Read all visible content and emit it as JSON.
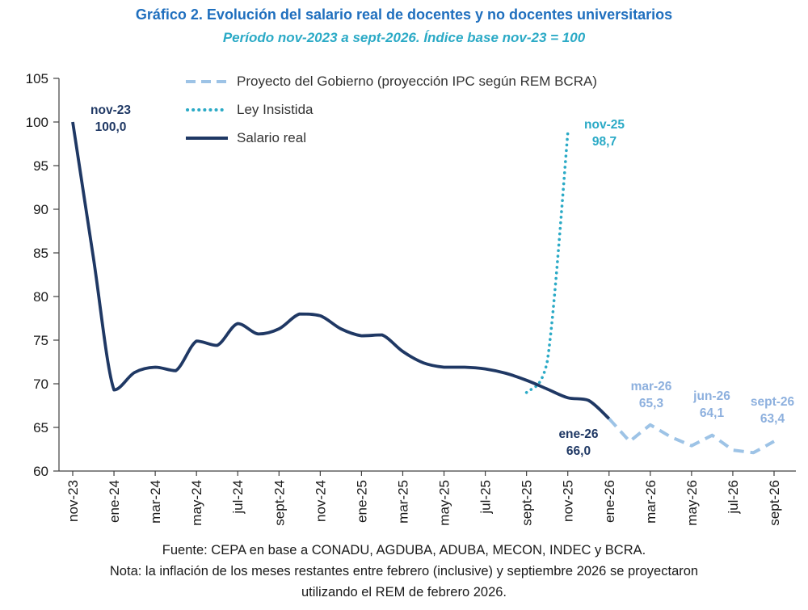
{
  "header": {
    "title": "Gráfico 2. Evolución del salario real de docentes y no docentes universitarios",
    "subtitle": "Período nov-2023 a sept-2026. Índice base nov-23 = 100"
  },
  "colors": {
    "title_blue": "#1F6FBE",
    "subtitle_teal": "#2BAAC6",
    "navy": "#1F3864",
    "teal": "#2BAAC6",
    "light_blue_line": "#9DC3E6",
    "light_blue_text": "#8DB0DE",
    "axis": "#404040",
    "axis_text": "#1a1a1a"
  },
  "legend": [
    {
      "label": "Proyecto del Gobierno (proyección IPC según REM BCRA)",
      "style": "dashed",
      "color": "#9DC3E6"
    },
    {
      "label": "Ley Insistida",
      "style": "dotted",
      "color": "#2BAAC6"
    },
    {
      "label": "Salario real",
      "style": "solid",
      "color": "#1F3864"
    }
  ],
  "annotations": [
    {
      "label": "nov-23",
      "value": "100,0",
      "color": "#1F3864"
    },
    {
      "label": "nov-25",
      "value": "98,7",
      "color": "#2BAAC6"
    },
    {
      "label": "ene-26",
      "value": "66,0",
      "color": "#1F3864"
    },
    {
      "label": "mar-26",
      "value": "65,3",
      "color": "#8DB0DE"
    },
    {
      "label": "jun-26",
      "value": "64,1",
      "color": "#8DB0DE"
    },
    {
      "label": "sept-26",
      "value": "63,4",
      "color": "#8DB0DE"
    }
  ],
  "footer": {
    "source": "Fuente: CEPA en base a CONADU, AGDUBA, ADUBA, MECON, INDEC y BCRA.",
    "note": "Nota: la inflación de los meses restantes entre febrero (inclusive) y septiembre 2026 se proyectaron utilizando el REM de febrero 2026."
  },
  "chart_data": {
    "type": "line",
    "title": "Gráfico 2. Evolución del salario real de docentes y no docentes universitarios",
    "subtitle": "Período nov-2023 a sept-2026. Índice base nov-23 = 100",
    "ylim": [
      60,
      105
    ],
    "yticks": [
      60,
      65,
      70,
      75,
      80,
      85,
      90,
      95,
      100,
      105
    ],
    "grid": false,
    "legend_position": "top-inside",
    "x": [
      "nov-23",
      "dic-23",
      "ene-24",
      "feb-24",
      "mar-24",
      "abr-24",
      "may-24",
      "jun-24",
      "jul-24",
      "ago-24",
      "sept-24",
      "oct-24",
      "nov-24",
      "dic-24",
      "ene-25",
      "feb-25",
      "mar-25",
      "abr-25",
      "may-25",
      "jun-25",
      "jul-25",
      "ago-25",
      "sept-25",
      "oct-25",
      "nov-25",
      "dic-25",
      "ene-26",
      "feb-26",
      "mar-26",
      "abr-26",
      "may-26",
      "jun-26",
      "jul-26",
      "ago-26",
      "sept-26"
    ],
    "tick_labels": [
      "nov-23",
      "ene-24",
      "mar-24",
      "may-24",
      "jul-24",
      "sept-24",
      "nov-24",
      "ene-25",
      "mar-25",
      "may-25",
      "jul-25",
      "sept-25",
      "nov-25",
      "ene-26",
      "mar-26",
      "may-26",
      "jul-26",
      "sept-26"
    ],
    "series": [
      {
        "id": "proyecto-gobierno",
        "name": "Proyecto del Gobierno (proyección IPC según REM BCRA)",
        "color": "#9DC3E6",
        "style": "dashed",
        "smooth": false,
        "width": 4,
        "values": [
          null,
          null,
          null,
          null,
          null,
          null,
          null,
          null,
          null,
          null,
          null,
          null,
          null,
          null,
          null,
          null,
          null,
          null,
          null,
          null,
          null,
          null,
          null,
          null,
          null,
          null,
          66.0,
          63.4,
          65.3,
          63.9,
          62.9,
          64.1,
          62.4,
          62.1,
          63.4
        ]
      },
      {
        "id": "ley-insistida",
        "name": "Ley Insistida",
        "color": "#2BAAC6",
        "style": "dotted",
        "smooth": true,
        "width": 3.6,
        "values": [
          null,
          null,
          null,
          null,
          null,
          null,
          null,
          null,
          null,
          null,
          null,
          null,
          null,
          null,
          null,
          null,
          null,
          null,
          null,
          null,
          null,
          null,
          69.0,
          72.5,
          98.7,
          null,
          null,
          null,
          null,
          null,
          null,
          null,
          null,
          null,
          null
        ]
      },
      {
        "id": "salario-real",
        "name": "Salario real",
        "color": "#1F3864",
        "style": "solid",
        "smooth": true,
        "width": 3.8,
        "values": [
          100.0,
          84.5,
          69.3,
          71.3,
          71.9,
          71.5,
          74.9,
          74.4,
          76.9,
          75.7,
          76.3,
          78.0,
          77.8,
          76.3,
          75.5,
          75.6,
          73.7,
          72.4,
          71.9,
          71.9,
          71.7,
          71.2,
          70.4,
          69.4,
          68.4,
          68.1,
          66.0,
          null,
          null,
          null,
          null,
          null,
          null,
          null,
          null
        ]
      }
    ]
  }
}
